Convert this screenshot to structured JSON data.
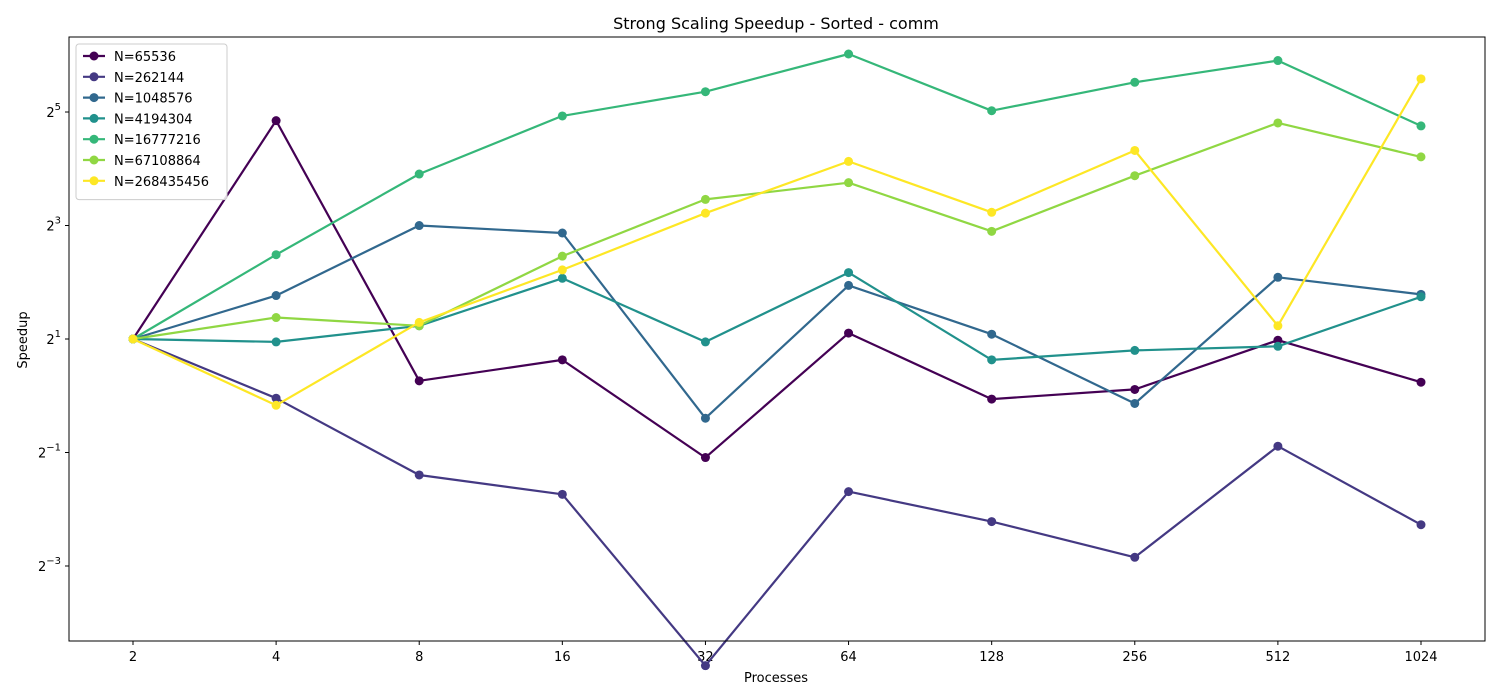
{
  "chart_data": {
    "type": "line",
    "title": "Strong Scaling Speedup - Sorted - comm",
    "xlabel": "Processes",
    "ylabel": "Speedup",
    "x": [
      2,
      4,
      8,
      16,
      32,
      64,
      128,
      256,
      512,
      1024
    ],
    "x_tick_labels": [
      "2",
      "4",
      "8",
      "16",
      "32",
      "64",
      "128",
      "256",
      "512",
      "1024"
    ],
    "x_scale": "log2 (categorical spacing)",
    "y_scale": "log2",
    "y_ticks": [
      {
        "base": "2",
        "exp": "−3",
        "value": 0.125
      },
      {
        "base": "2",
        "exp": "−1",
        "value": 0.5
      },
      {
        "base": "2",
        "exp": "1",
        "value": 2
      },
      {
        "base": "2",
        "exp": "3",
        "value": 8
      },
      {
        "base": "2",
        "exp": "5",
        "value": 32
      }
    ],
    "ylim": [
      0.05,
      80
    ],
    "grid": false,
    "legend_position": "upper-left",
    "series": [
      {
        "name": "N=65536",
        "color": "#440154",
        "values": [
          2.0,
          28.8,
          1.2,
          1.55,
          0.47,
          2.15,
          0.96,
          1.08,
          1.97,
          1.18
        ]
      },
      {
        "name": "N=262144",
        "color": "#443983",
        "values": [
          2.0,
          0.97,
          0.38,
          0.3,
          0.037,
          0.31,
          0.215,
          0.139,
          0.54,
          0.207
        ]
      },
      {
        "name": "N=1048576",
        "color": "#31688e",
        "values": [
          2.0,
          3.4,
          8.0,
          7.3,
          0.76,
          3.85,
          2.12,
          0.91,
          4.25,
          3.45
        ]
      },
      {
        "name": "N=4194304",
        "color": "#21918c",
        "values": [
          2.0,
          1.93,
          2.35,
          4.2,
          1.93,
          4.5,
          1.55,
          1.74,
          1.83,
          3.35
        ]
      },
      {
        "name": "N=16777216",
        "color": "#35b779",
        "values": [
          2.0,
          5.6,
          15.0,
          30.5,
          41.0,
          65.0,
          32.5,
          46.0,
          60.0,
          27.0
        ]
      },
      {
        "name": "N=67108864",
        "color": "#90d743",
        "values": [
          2.0,
          2.6,
          2.35,
          5.5,
          11.0,
          13.5,
          7.45,
          14.7,
          28.0,
          18.5
        ]
      },
      {
        "name": "N=268435456",
        "color": "#fde725",
        "values": [
          2.0,
          0.89,
          2.45,
          4.65,
          9.3,
          17.5,
          9.4,
          20.0,
          2.35,
          48.0
        ]
      }
    ]
  }
}
